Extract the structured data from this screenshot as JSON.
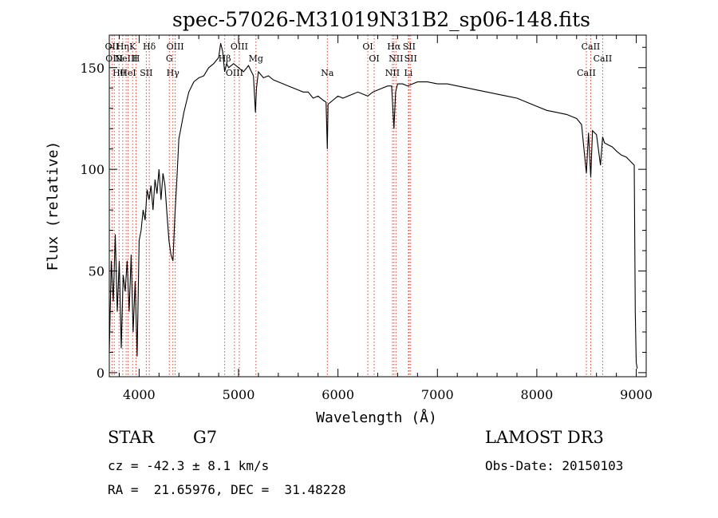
{
  "chart_data": {
    "type": "line",
    "title": "spec-57026-M31019N31B2_sp06-148.fits",
    "xlabel": "Wavelength (Å)",
    "ylabel": "Flux (relative)",
    "xlim": [
      3700,
      9100
    ],
    "ylim": [
      -2,
      166
    ],
    "xticks": [
      4000,
      5000,
      6000,
      7000,
      8000,
      9000
    ],
    "yticks": [
      0,
      50,
      100,
      150
    ],
    "grid": false,
    "series": [
      {
        "name": "flux",
        "x": [
          3700,
          3720,
          3740,
          3760,
          3780,
          3800,
          3820,
          3840,
          3860,
          3880,
          3900,
          3920,
          3940,
          3960,
          3980,
          4000,
          4020,
          4040,
          4060,
          4080,
          4100,
          4120,
          4140,
          4160,
          4180,
          4200,
          4220,
          4240,
          4260,
          4280,
          4300,
          4320,
          4340,
          4360,
          4380,
          4400,
          4420,
          4450,
          4500,
          4550,
          4600,
          4650,
          4700,
          4750,
          4800,
          4820,
          4840,
          4860,
          4880,
          4900,
          4950,
          5000,
          5050,
          5100,
          5150,
          5170,
          5180,
          5200,
          5250,
          5300,
          5350,
          5400,
          5450,
          5500,
          5550,
          5600,
          5650,
          5700,
          5750,
          5800,
          5850,
          5880,
          5893,
          5900,
          5950,
          6000,
          6050,
          6100,
          6150,
          6200,
          6250,
          6300,
          6350,
          6400,
          6450,
          6500,
          6540,
          6563,
          6580,
          6600,
          6650,
          6700,
          6750,
          6800,
          6900,
          7000,
          7100,
          7200,
          7300,
          7400,
          7500,
          7600,
          7700,
          7800,
          7900,
          8000,
          8100,
          8200,
          8300,
          8400,
          8450,
          8498,
          8520,
          8542,
          8560,
          8600,
          8640,
          8662,
          8680,
          8720,
          8760,
          8800,
          8850,
          8900,
          8940,
          8980,
          8990,
          9000,
          9010
        ],
        "values": [
          10,
          55,
          35,
          68,
          30,
          55,
          12,
          48,
          40,
          55,
          30,
          58,
          20,
          45,
          8,
          65,
          70,
          80,
          75,
          90,
          85,
          92,
          80,
          95,
          88,
          100,
          85,
          98,
          92,
          78,
          65,
          58,
          55,
          78,
          95,
          115,
          120,
          128,
          138,
          143,
          145,
          146,
          150,
          152,
          155,
          162,
          158,
          148,
          152,
          150,
          152,
          150,
          148,
          151,
          146,
          128,
          140,
          148,
          145,
          146,
          144,
          143,
          142,
          141,
          140,
          139,
          138,
          138,
          135,
          136,
          134,
          133,
          110,
          132,
          134,
          136,
          135,
          136,
          137,
          138,
          137,
          136,
          138,
          139,
          140,
          141,
          141,
          120,
          138,
          142,
          142,
          141,
          142,
          143,
          143,
          142,
          142,
          141,
          140,
          139,
          138,
          137,
          136,
          135,
          133,
          131,
          129,
          128,
          127,
          125,
          122,
          98,
          118,
          96,
          119,
          117,
          102,
          116,
          113,
          112,
          111,
          109,
          107,
          106,
          104,
          102,
          30,
          5,
          2
        ]
      }
    ],
    "line_markers": [
      {
        "wave": 3727,
        "label": "OII"
      },
      {
        "wave": 3750,
        "label": "OIII"
      },
      {
        "wave": 3798,
        "label": "Hθ"
      },
      {
        "wave": 3835,
        "label": "Hη"
      },
      {
        "wave": 3869,
        "label": "NeIII"
      },
      {
        "wave": 3889,
        "label": "HeI"
      },
      {
        "wave": 3934,
        "label": "K"
      },
      {
        "wave": 3969,
        "label": "H"
      },
      {
        "wave": 4072,
        "label": "SII"
      },
      {
        "wave": 4102,
        "label": "Hδ"
      },
      {
        "wave": 4304,
        "label": "G"
      },
      {
        "wave": 4340,
        "label": "Hγ"
      },
      {
        "wave": 4363,
        "label": "OIII"
      },
      {
        "wave": 4861,
        "label": "Hβ"
      },
      {
        "wave": 4959,
        "label": "OIII"
      },
      {
        "wave": 5007,
        "label": "OIII"
      },
      {
        "wave": 5175,
        "label": "Mg"
      },
      {
        "wave": 5893,
        "label": "Na"
      },
      {
        "wave": 6300,
        "label": "OI"
      },
      {
        "wave": 6364,
        "label": "OI"
      },
      {
        "wave": 6548,
        "label": "NII"
      },
      {
        "wave": 6563,
        "label": "Hα"
      },
      {
        "wave": 6583,
        "label": "NII"
      },
      {
        "wave": 6708,
        "label": "Li"
      },
      {
        "wave": 6716,
        "label": "SII"
      },
      {
        "wave": 6731,
        "label": "SII"
      },
      {
        "wave": 8498,
        "label": "CaII"
      },
      {
        "wave": 8542,
        "label": "CaII"
      },
      {
        "wave": 8662,
        "label": "CaII"
      }
    ]
  },
  "footer": {
    "object_class": "STAR",
    "subclass": "G7",
    "survey": "LAMOST DR3",
    "redshift": "cz = -42.3 ± 8.1 km/s",
    "obs_date": "Obs-Date: 20150103",
    "coordinates": "RA =  21.65976, DEC =  31.48228"
  }
}
